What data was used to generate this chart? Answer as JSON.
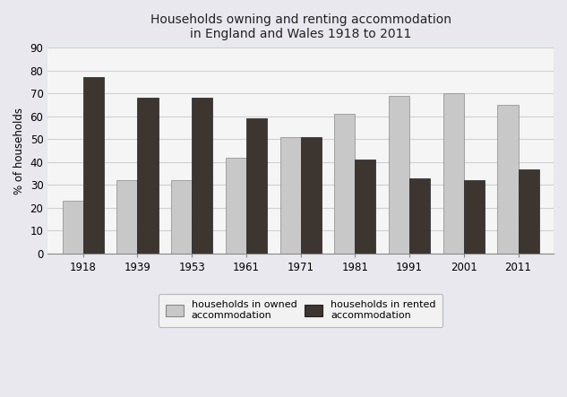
{
  "title_line1": "Households owning and renting accommodation",
  "title_line2": "in England and Wales 1918 to 2011",
  "years": [
    "1918",
    "1939",
    "1953",
    "1961",
    "1971",
    "1981",
    "1991",
    "2001",
    "2011"
  ],
  "owned": [
    23,
    32,
    32,
    42,
    51,
    61,
    69,
    70,
    65
  ],
  "rented": [
    77,
    68,
    68,
    59,
    51,
    41,
    33,
    32,
    37
  ],
  "owned_color": "#c8c8c8",
  "rented_color": "#3d3530",
  "ylabel": "% of households",
  "ylim": [
    0,
    90
  ],
  "yticks": [
    0,
    10,
    20,
    30,
    40,
    50,
    60,
    70,
    80,
    90
  ],
  "legend_owned": "households in owned\naccommodation",
  "legend_rented": "households in rented\naccommodation",
  "bar_width": 0.38,
  "background_color": "#e8e8ee",
  "plot_background": "#f5f5f5",
  "grid_color": "#d0d0d0"
}
